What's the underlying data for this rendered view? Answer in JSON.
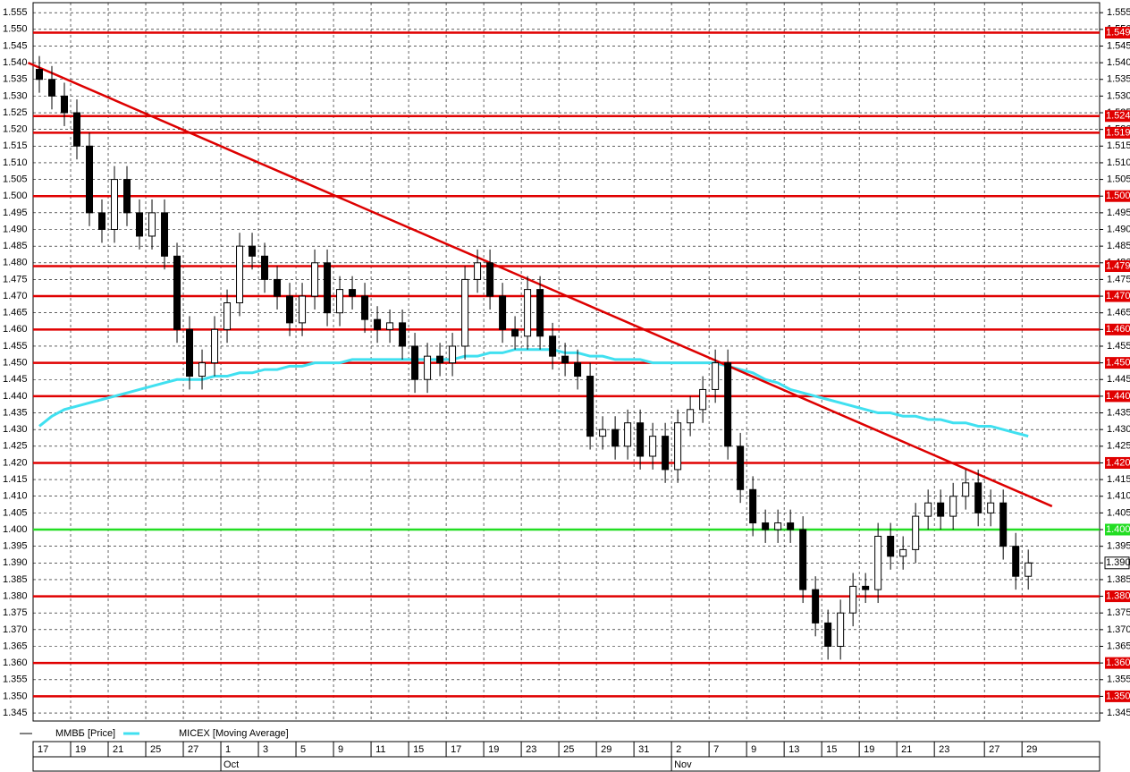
{
  "chart_data": {
    "type": "candlestick",
    "xlim": [
      -0.5,
      84.7
    ],
    "ylim": [
      1.3426,
      1.558
    ],
    "yticks": [
      1.345,
      {
        "value": 1.35,
        "label": "1.350"
      },
      1.355,
      {
        "value": 1.36,
        "label": "1.360"
      },
      1.365,
      {
        "value": 1.37,
        "label": "1.370"
      },
      1.375,
      {
        "value": 1.38,
        "label": "1.380"
      },
      1.385,
      {
        "value": 1.39,
        "label": "1.390"
      },
      1.395,
      {
        "value": 1.4,
        "label": "1.400"
      },
      1.405,
      {
        "value": 1.41,
        "label": "1.410"
      },
      1.415,
      {
        "value": 1.42,
        "label": "1.420"
      },
      1.425,
      {
        "value": 1.43,
        "label": "1.430"
      },
      1.435,
      {
        "value": 1.44,
        "label": "1.440"
      },
      1.445,
      {
        "value": 1.45,
        "label": "1.450"
      },
      1.455,
      {
        "value": 1.46,
        "label": "1.460"
      },
      1.465,
      {
        "value": 1.47,
        "label": "1.470"
      },
      1.475,
      {
        "value": 1.48,
        "label": "1.480"
      },
      1.485,
      {
        "value": 1.49,
        "label": "1.490"
      },
      1.495,
      {
        "value": 1.5,
        "label": "1.500"
      },
      1.505,
      {
        "value": 1.51,
        "label": "1.510"
      },
      1.515,
      {
        "value": 1.52,
        "label": "1.520"
      },
      1.525,
      {
        "value": 1.53,
        "label": "1.530"
      },
      1.535,
      {
        "value": 1.54,
        "label": "1.540"
      },
      1.545,
      {
        "value": 1.55,
        "label": "1.550"
      },
      1.555
    ],
    "xticks": [
      {
        "value": -0.5,
        "label": "17"
      },
      {
        "value": 2.5,
        "label": "19"
      },
      {
        "value": 5.5,
        "label": "21"
      },
      {
        "value": 8.5,
        "label": "25"
      },
      {
        "value": 11.5,
        "label": "27"
      },
      {
        "value": 14.5,
        "label": "1"
      },
      {
        "value": 17.5,
        "label": "3"
      },
      {
        "value": 20.5,
        "label": "5"
      },
      {
        "value": 23.5,
        "label": "9"
      },
      {
        "value": 26.5,
        "label": "11"
      },
      {
        "value": 29.5,
        "label": "15"
      },
      {
        "value": 32.5,
        "label": "17"
      },
      {
        "value": 35.5,
        "label": "19"
      },
      {
        "value": 38.5,
        "label": "23"
      },
      {
        "value": 41.5,
        "label": "25"
      },
      {
        "value": 44.5,
        "label": "29"
      },
      {
        "value": 47.5,
        "label": "31"
      },
      {
        "value": 50.5,
        "label": "2"
      },
      {
        "value": 53.5,
        "label": "7"
      },
      {
        "value": 56.5,
        "label": "9"
      },
      {
        "value": 59.5,
        "label": "13"
      },
      {
        "value": 62.5,
        "label": "15"
      },
      {
        "value": 65.5,
        "label": "19"
      },
      {
        "value": 68.5,
        "label": "21"
      },
      {
        "value": 71.5,
        "label": "23"
      },
      {
        "value": 75.5,
        "label": "27"
      },
      {
        "value": 78.5,
        "label": "29"
      }
    ],
    "months": [
      {
        "value": 14.5,
        "label": "Oct"
      },
      {
        "value": 50.5,
        "label": "Nov"
      }
    ],
    "grid": true,
    "series": [
      {
        "name": "ММВБ [Price]",
        "color": "#000000",
        "up_color": "#ffffff",
        "down_color": "#000000",
        "open": [
          1.538,
          1.535,
          1.53,
          1.525,
          1.515,
          1.495,
          1.49,
          1.505,
          1.495,
          1.488,
          1.495,
          1.482,
          1.46,
          1.446,
          1.45,
          1.46,
          1.468,
          1.485,
          1.482,
          1.475,
          1.47,
          1.462,
          1.47,
          1.48,
          1.465,
          1.472,
          1.47,
          1.463,
          1.46,
          1.462,
          1.455,
          1.445,
          1.452,
          1.45,
          1.455,
          1.475,
          1.48,
          1.47,
          1.46,
          1.458,
          1.472,
          1.458,
          1.452,
          1.45,
          1.446,
          1.428,
          1.43,
          1.425,
          1.432,
          1.422,
          1.428,
          1.418,
          1.432,
          1.436,
          1.442,
          1.45,
          1.425,
          1.412,
          1.402,
          1.4,
          1.402,
          1.4,
          1.382,
          1.372,
          1.365,
          1.375,
          1.383,
          1.382,
          1.398,
          1.392,
          1.394,
          1.404,
          1.408,
          1.404,
          1.41,
          1.414,
          1.405,
          1.408,
          1.395,
          1.386
        ],
        "high": [
          1.542,
          1.539,
          1.534,
          1.529,
          1.519,
          1.499,
          1.509,
          1.509,
          1.499,
          1.499,
          1.499,
          1.486,
          1.464,
          1.454,
          1.464,
          1.472,
          1.489,
          1.489,
          1.486,
          1.479,
          1.474,
          1.474,
          1.484,
          1.484,
          1.476,
          1.476,
          1.474,
          1.467,
          1.466,
          1.466,
          1.459,
          1.456,
          1.456,
          1.459,
          1.479,
          1.484,
          1.484,
          1.474,
          1.464,
          1.476,
          1.476,
          1.462,
          1.456,
          1.454,
          1.45,
          1.434,
          1.434,
          1.436,
          1.436,
          1.432,
          1.432,
          1.436,
          1.44,
          1.446,
          1.454,
          1.454,
          1.429,
          1.416,
          1.406,
          1.406,
          1.406,
          1.404,
          1.386,
          1.376,
          1.379,
          1.387,
          1.387,
          1.402,
          1.402,
          1.398,
          1.408,
          1.412,
          1.412,
          1.414,
          1.418,
          1.418,
          1.412,
          1.412,
          1.399,
          1.394
        ],
        "low": [
          1.531,
          1.526,
          1.521,
          1.511,
          1.491,
          1.486,
          1.486,
          1.491,
          1.484,
          1.484,
          1.478,
          1.456,
          1.442,
          1.442,
          1.446,
          1.456,
          1.464,
          1.478,
          1.471,
          1.466,
          1.458,
          1.458,
          1.466,
          1.461,
          1.461,
          1.466,
          1.459,
          1.456,
          1.456,
          1.451,
          1.441,
          1.441,
          1.446,
          1.446,
          1.451,
          1.471,
          1.466,
          1.456,
          1.454,
          1.454,
          1.454,
          1.448,
          1.446,
          1.442,
          1.424,
          1.424,
          1.421,
          1.421,
          1.418,
          1.418,
          1.414,
          1.414,
          1.428,
          1.432,
          1.438,
          1.421,
          1.408,
          1.398,
          1.396,
          1.396,
          1.396,
          1.378,
          1.368,
          1.361,
          1.361,
          1.371,
          1.378,
          1.378,
          1.388,
          1.388,
          1.39,
          1.4,
          1.4,
          1.4,
          1.406,
          1.401,
          1.401,
          1.391,
          1.382,
          1.382
        ],
        "close": [
          1.535,
          1.53,
          1.525,
          1.515,
          1.495,
          1.49,
          1.505,
          1.495,
          1.488,
          1.495,
          1.482,
          1.46,
          1.446,
          1.45,
          1.46,
          1.468,
          1.485,
          1.482,
          1.475,
          1.47,
          1.462,
          1.47,
          1.48,
          1.465,
          1.472,
          1.47,
          1.463,
          1.46,
          1.462,
          1.455,
          1.445,
          1.452,
          1.45,
          1.455,
          1.475,
          1.48,
          1.47,
          1.46,
          1.458,
          1.472,
          1.458,
          1.452,
          1.45,
          1.446,
          1.428,
          1.43,
          1.425,
          1.432,
          1.422,
          1.428,
          1.418,
          1.432,
          1.436,
          1.442,
          1.45,
          1.425,
          1.412,
          1.402,
          1.4,
          1.402,
          1.4,
          1.382,
          1.372,
          1.365,
          1.375,
          1.383,
          1.382,
          1.398,
          1.392,
          1.394,
          1.404,
          1.408,
          1.404,
          1.41,
          1.414,
          1.405,
          1.408,
          1.395,
          1.386,
          1.39
        ],
        "last_label": "1.390"
      },
      {
        "name": "MICEX [Moving Average]",
        "color": "#40e0f0",
        "values": [
          1.431,
          1.434,
          1.436,
          1.437,
          1.438,
          1.439,
          1.44,
          1.441,
          1.442,
          1.443,
          1.444,
          1.445,
          1.445,
          1.445,
          1.446,
          1.446,
          1.447,
          1.447,
          1.448,
          1.448,
          1.449,
          1.449,
          1.45,
          1.45,
          1.45,
          1.451,
          1.451,
          1.451,
          1.451,
          1.451,
          1.451,
          1.451,
          1.451,
          1.451,
          1.452,
          1.452,
          1.453,
          1.453,
          1.454,
          1.454,
          1.454,
          1.454,
          1.453,
          1.453,
          1.452,
          1.452,
          1.451,
          1.451,
          1.451,
          1.45,
          1.45,
          1.45,
          1.45,
          1.45,
          1.45,
          1.449,
          1.448,
          1.447,
          1.445,
          1.444,
          1.442,
          1.441,
          1.44,
          1.439,
          1.438,
          1.437,
          1.436,
          1.435,
          1.435,
          1.434,
          1.434,
          1.433,
          1.433,
          1.432,
          1.432,
          1.431,
          1.431,
          1.43,
          1.429,
          1.428
        ]
      }
    ],
    "trendline": {
      "x": [
        -0.9,
        80.9
      ],
      "y": [
        1.54,
        1.407
      ],
      "color": "#dd0000"
    },
    "levels": [
      {
        "value": 1.549,
        "label": "1.549",
        "color": "#e00000"
      },
      {
        "value": 1.524,
        "label": "1.524",
        "color": "#e00000"
      },
      {
        "value": 1.519,
        "label": "1.519",
        "color": "#e00000"
      },
      {
        "value": 1.5,
        "label": "1.500",
        "color": "#e00000"
      },
      {
        "value": 1.479,
        "label": "1.479",
        "color": "#e00000"
      },
      {
        "value": 1.47,
        "label": "1.470",
        "color": "#e00000"
      },
      {
        "value": 1.46,
        "label": "1.460",
        "color": "#e00000"
      },
      {
        "value": 1.45,
        "label": "1.450",
        "color": "#e00000"
      },
      {
        "value": 1.44,
        "label": "1.440",
        "color": "#e00000"
      },
      {
        "value": 1.42,
        "label": "1.420",
        "color": "#e00000"
      },
      {
        "value": 1.4,
        "label": "1.400",
        "color": "#22dd22"
      },
      {
        "value": 1.38,
        "label": "1.380",
        "color": "#e00000"
      },
      {
        "value": 1.36,
        "label": "1.360",
        "color": "#e00000"
      },
      {
        "value": 1.35,
        "label": "1.350",
        "color": "#e00000"
      }
    ]
  }
}
